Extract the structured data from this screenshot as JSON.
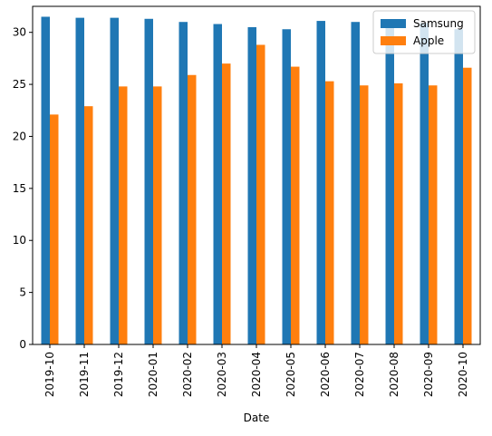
{
  "chart_data": {
    "type": "bar",
    "xlabel": "Date",
    "ylabel": "",
    "categories": [
      "2019-10",
      "2019-11",
      "2019-12",
      "2020-01",
      "2020-02",
      "2020-03",
      "2020-04",
      "2020-05",
      "2020-06",
      "2020-07",
      "2020-08",
      "2020-09",
      "2020-10"
    ],
    "series": [
      {
        "name": "Samsung",
        "color": "#1f77b4",
        "values": [
          31.5,
          31.4,
          31.4,
          31.3,
          31.0,
          30.8,
          30.5,
          30.3,
          31.1,
          31.0,
          30.9,
          30.9,
          30.3
        ]
      },
      {
        "name": "Apple",
        "color": "#ff7f0e",
        "values": [
          22.1,
          22.9,
          24.8,
          24.8,
          25.9,
          27.0,
          28.8,
          26.7,
          25.3,
          24.9,
          25.1,
          24.9,
          26.6
        ]
      }
    ],
    "ylim": [
      0,
      32.5
    ],
    "yticks": [
      0,
      5,
      10,
      15,
      20,
      25,
      30
    ],
    "legend_position": "top-right",
    "grid": false
  }
}
